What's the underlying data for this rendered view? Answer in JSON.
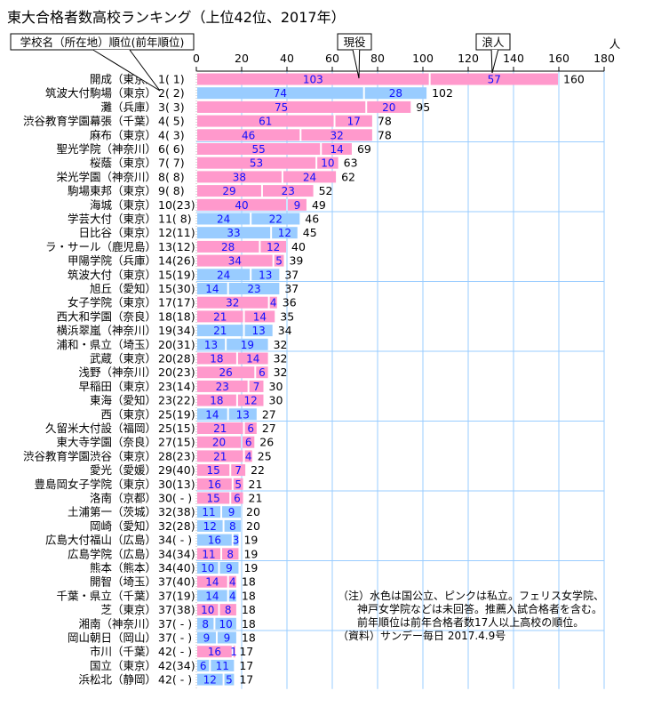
{
  "title": "東大合格者数高校ランキング（上位42位、2017年）",
  "colors": {
    "public": "#99ccff",
    "private": "#ff99cc",
    "grid": "#99ccff",
    "value": "#1010ff"
  },
  "callouts": {
    "label_header": "学校名（所在地）順位(前年順位)",
    "current": "現役",
    "ronin": "浪人"
  },
  "notes": [
    "（注）水色は国公立、ピンクは私立。フェリス女学院、",
    "神戸女学院などは未回答。推薦入試合格者を含む。",
    "前年順位は前年合格者数17人以上高校の順位。",
    "（資料）サンデー毎日 2017.4.9号"
  ],
  "chart_data": {
    "type": "bar",
    "stacked": true,
    "orientation": "horizontal",
    "title": "東大合格者数高校ランキング（上位42位、2017年）",
    "xlabel": "人",
    "xlim": [
      0,
      180
    ],
    "xticks": [
      "0",
      "20",
      "40",
      "60",
      "80",
      "100",
      "120",
      "140",
      "160",
      "180"
    ],
    "series_names": [
      "現役",
      "浪人"
    ],
    "rows": [
      {
        "name": "開成（東京）",
        "rank": "1( 1)",
        "type": "private",
        "current": 103,
        "ronin": 57,
        "total": 160
      },
      {
        "name": "筑波大付駒場（東京）",
        "rank": "2( 2)",
        "type": "public",
        "current": 74,
        "ronin": 28,
        "total": 102
      },
      {
        "name": "灘（兵庫）",
        "rank": "3( 3)",
        "type": "private",
        "current": 75,
        "ronin": 20,
        "total": 95
      },
      {
        "name": "渋谷教育学園幕張（千葉）",
        "rank": "4( 5)",
        "type": "private",
        "current": 61,
        "ronin": 17,
        "total": 78
      },
      {
        "name": "麻布（東京）",
        "rank": "4( 3)",
        "type": "private",
        "current": 46,
        "ronin": 32,
        "total": 78
      },
      {
        "name": "聖光学院（神奈川）",
        "rank": "6( 6)",
        "type": "private",
        "current": 55,
        "ronin": 14,
        "total": 69
      },
      {
        "name": "桜蔭（東京）",
        "rank": "7( 7)",
        "type": "private",
        "current": 53,
        "ronin": 10,
        "total": 63
      },
      {
        "name": "栄光学園（神奈川）",
        "rank": "8( 8)",
        "type": "private",
        "current": 38,
        "ronin": 24,
        "total": 62
      },
      {
        "name": "駒場東邦（東京）",
        "rank": "9( 8)",
        "type": "private",
        "current": 29,
        "ronin": 23,
        "total": 52
      },
      {
        "name": "海城（東京）",
        "rank": "10(23)",
        "type": "private",
        "current": 40,
        "ronin": 9,
        "total": 49
      },
      {
        "name": "学芸大付（東京）",
        "rank": "11( 8)",
        "type": "public",
        "current": 24,
        "ronin": 22,
        "total": 46
      },
      {
        "name": "日比谷（東京）",
        "rank": "12(11)",
        "type": "public",
        "current": 33,
        "ronin": 12,
        "total": 45
      },
      {
        "name": "ラ・サール（鹿児島）",
        "rank": "13(12)",
        "type": "private",
        "current": 28,
        "ronin": 12,
        "total": 40
      },
      {
        "name": "甲陽学院（兵庫）",
        "rank": "14(26)",
        "type": "private",
        "current": 34,
        "ronin": 5,
        "total": 39
      },
      {
        "name": "筑波大付（東京）",
        "rank": "15(19)",
        "type": "public",
        "current": 24,
        "ronin": 13,
        "total": 37
      },
      {
        "name": "旭丘（愛知）",
        "rank": "15(30)",
        "type": "public",
        "current": 14,
        "ronin": 23,
        "total": 37
      },
      {
        "name": "女子学院（東京）",
        "rank": "17(17)",
        "type": "private",
        "current": 32,
        "ronin": 4,
        "total": 36
      },
      {
        "name": "西大和学園（奈良）",
        "rank": "18(18)",
        "type": "private",
        "current": 21,
        "ronin": 14,
        "total": 35
      },
      {
        "name": "横浜翠嵐（神奈川）",
        "rank": "19(34)",
        "type": "public",
        "current": 21,
        "ronin": 13,
        "total": 34
      },
      {
        "name": "浦和・県立（埼玉）",
        "rank": "20(31)",
        "type": "public",
        "current": 13,
        "ronin": 19,
        "total": 32
      },
      {
        "name": "武蔵（東京）",
        "rank": "20(28)",
        "type": "private",
        "current": 18,
        "ronin": 14,
        "total": 32
      },
      {
        "name": "浅野（神奈川）",
        "rank": "20(23)",
        "type": "private",
        "current": 26,
        "ronin": 6,
        "total": 32
      },
      {
        "name": "早稲田（東京）",
        "rank": "23(14)",
        "type": "private",
        "current": 23,
        "ronin": 7,
        "total": 30
      },
      {
        "name": "東海（愛知）",
        "rank": "23(22)",
        "type": "private",
        "current": 18,
        "ronin": 12,
        "total": 30
      },
      {
        "name": "西（東京）",
        "rank": "25(19)",
        "type": "public",
        "current": 14,
        "ronin": 13,
        "total": 27
      },
      {
        "name": "久留米大付設（福岡）",
        "rank": "25(15)",
        "type": "private",
        "current": 21,
        "ronin": 6,
        "total": 27
      },
      {
        "name": "東大寺学園（奈良）",
        "rank": "27(15)",
        "type": "private",
        "current": 20,
        "ronin": 6,
        "total": 26
      },
      {
        "name": "渋谷教育学園渋谷（東京）",
        "rank": "28(23)",
        "type": "private",
        "current": 21,
        "ronin": 4,
        "total": 25
      },
      {
        "name": "愛光（愛媛）",
        "rank": "29(40)",
        "type": "private",
        "current": 15,
        "ronin": 7,
        "total": 22
      },
      {
        "name": "豊島岡女子学院（東京）",
        "rank": "30(13)",
        "type": "private",
        "current": 16,
        "ronin": 5,
        "total": 21
      },
      {
        "name": "洛南（京都）",
        "rank": "30( - )",
        "type": "private",
        "current": 15,
        "ronin": 6,
        "total": 21
      },
      {
        "name": "土浦第一（茨城）",
        "rank": "32(38)",
        "type": "public",
        "current": 11,
        "ronin": 9,
        "total": 20
      },
      {
        "name": "岡崎（愛知）",
        "rank": "32(28)",
        "type": "public",
        "current": 12,
        "ronin": 8,
        "total": 20
      },
      {
        "name": "広島大付福山（広島）",
        "rank": "34( - )",
        "type": "public",
        "current": 16,
        "ronin": 3,
        "total": 19
      },
      {
        "name": "広島学院（広島）",
        "rank": "34(34)",
        "type": "private",
        "current": 11,
        "ronin": 8,
        "total": 19
      },
      {
        "name": "熊本（熊本）",
        "rank": "34(40)",
        "type": "public",
        "current": 10,
        "ronin": 9,
        "total": 19
      },
      {
        "name": "開智（埼玉）",
        "rank": "37(40)",
        "type": "private",
        "current": 14,
        "ronin": 4,
        "total": 18
      },
      {
        "name": "千葉・県立（千葉）",
        "rank": "37(19)",
        "type": "public",
        "current": 14,
        "ronin": 4,
        "total": 18
      },
      {
        "name": "芝（東京）",
        "rank": "37(38)",
        "type": "private",
        "current": 10,
        "ronin": 8,
        "total": 18
      },
      {
        "name": "湘南（神奈川）",
        "rank": "37( - )",
        "type": "public",
        "current": 8,
        "ronin": 10,
        "total": 18
      },
      {
        "name": "岡山朝日（岡山）",
        "rank": "37( - )",
        "type": "public",
        "current": 9,
        "ronin": 9,
        "total": 18
      },
      {
        "name": "市川（千葉）",
        "rank": "42( - )",
        "type": "private",
        "current": 16,
        "ronin": 1,
        "total": 17
      },
      {
        "name": "国立（東京）",
        "rank": "42(34)",
        "type": "public",
        "current": 6,
        "ronin": 11,
        "total": 17
      },
      {
        "name": "浜松北（静岡）",
        "rank": "42( - )",
        "type": "public",
        "current": 12,
        "ronin": 5,
        "total": 17
      }
    ]
  }
}
